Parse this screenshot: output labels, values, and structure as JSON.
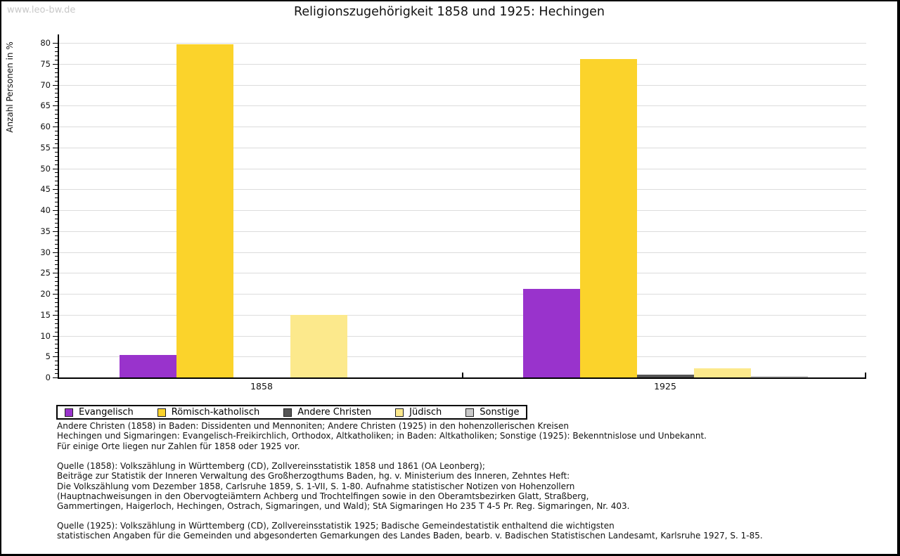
{
  "page": {
    "watermark": "www.leo-bw.de",
    "title": "Religionszugehörigkeit 1858 und 1925: Hechingen"
  },
  "chart_data": {
    "type": "bar",
    "title": "Religionszugehörigkeit 1858 und 1925: Hechingen",
    "xlabel": "",
    "ylabel": "Anzahl Personen in %",
    "ylim": [
      0,
      80
    ],
    "ytick_major": 5,
    "ytick_minor": 1,
    "grid": "horizontal major gridlines, light gray",
    "legend_position": "boxed legend below plot, bottom-left",
    "categories": [
      "1858",
      "1925"
    ],
    "series": [
      {
        "name": "Evangelisch",
        "color": "#9933cc",
        "values": [
          5.4,
          21.2
        ]
      },
      {
        "name": "Römisch-katholisch",
        "color": "#fbd32b",
        "values": [
          79.6,
          76.1
        ]
      },
      {
        "name": "Andere Christen",
        "color": "#555555",
        "values": [
          0,
          0.6
        ]
      },
      {
        "name": "Jüdisch",
        "color": "#fce98c",
        "values": [
          15,
          2.2
        ]
      },
      {
        "name": "Sonstige",
        "color": "#c9c9c9",
        "values": [
          0,
          0.4
        ]
      }
    ]
  },
  "notes": {
    "lines": [
      "Andere Christen (1858) in Baden: Dissidenten und Mennoniten; Andere Christen (1925) in den hohenzollerischen Kreisen",
      "Hechingen und Sigmaringen: Evangelisch-Freikirchlich, Orthodox, Altkatholiken; in Baden: Altkatholiken; Sonstige (1925): Bekenntnislose und Unbekannt.",
      "Für einige Orte liegen nur Zahlen für 1858 oder 1925 vor."
    ]
  },
  "source_1858": {
    "lines": [
      "Quelle (1858): Volkszählung in Württemberg (CD), Zollvereinsstatistik 1858 und 1861 (OA Leonberg);",
      "Beiträge zur Statistik der Inneren Verwaltung des Großherzogthums Baden, hg. v. Ministerium des Inneren, Zehntes Heft:",
      "Die Volkszählung vom Dezember 1858, Carlsruhe 1859, S. 1-VII, S. 1-80. Aufnahme statistischer Notizen von Hohenzollern",
      "(Hauptnachweisungen in den Obervogteiämtern Achberg und Trochtelfingen sowie in den Oberamtsbezirken Glatt, Straßberg,",
      "Gammertingen, Haigerloch, Hechingen, Ostrach, Sigmaringen, und Wald); StA Sigmaringen Ho 235 T 4-5 Pr. Reg. Sigmaringen, Nr. 403."
    ]
  },
  "source_1925": {
    "lines": [
      "Quelle (1925): Volkszählung in Württemberg (CD), Zollvereinsstatistik 1925; Badische Gemeindestatistik enthaltend die wichtigsten",
      "statistischen Angaben für die Gemeinden und abgesonderten Gemarkungen des Landes Baden, bearb. v. Badischen Statistischen Landesamt, Karlsruhe 1927, S. 1-85."
    ]
  }
}
